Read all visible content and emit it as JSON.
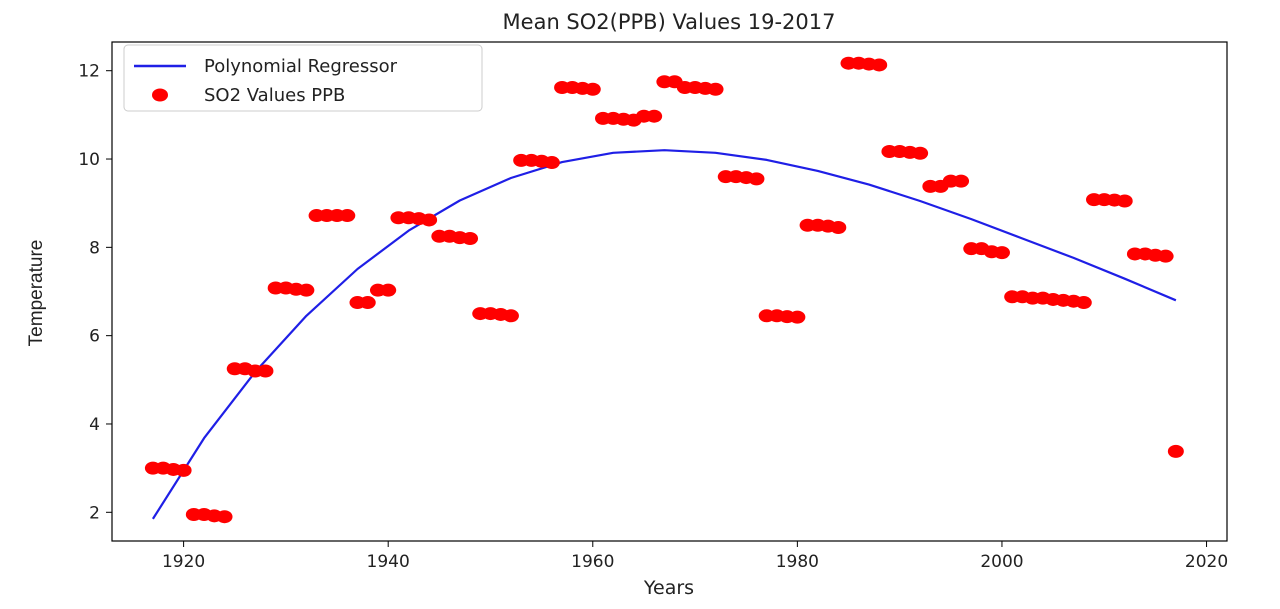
{
  "chart_data": {
    "type": "scatter",
    "title": "Mean SO2(PPB) Values 19-2017",
    "xlabel": "Years",
    "ylabel": "Temperature",
    "xlim": [
      1913,
      2022
    ],
    "ylim": [
      1.35,
      12.65
    ],
    "xticks": [
      1920,
      1940,
      1960,
      1980,
      2000,
      2020
    ],
    "yticks": [
      2,
      4,
      6,
      8,
      10,
      12
    ],
    "grid": false,
    "legend_position": "upper-left",
    "series": [
      {
        "name": "Polynomial Regressor",
        "kind": "line",
        "color": "#1f1fe6",
        "x": [
          1917,
          1922,
          1927,
          1932,
          1937,
          1942,
          1947,
          1952,
          1957,
          1962,
          1967,
          1972,
          1977,
          1982,
          1987,
          1992,
          1997,
          2002,
          2007,
          2012,
          2017
        ],
        "y": [
          1.85,
          3.68,
          5.18,
          6.45,
          7.51,
          8.38,
          9.06,
          9.57,
          9.93,
          10.14,
          10.2,
          10.14,
          9.98,
          9.73,
          9.42,
          9.05,
          8.64,
          8.2,
          7.76,
          7.29,
          6.8
        ]
      },
      {
        "name": "SO2 Values PPB",
        "kind": "scatter",
        "color": "#ff0000",
        "x": [
          1917,
          1918,
          1919,
          1920,
          1921,
          1922,
          1923,
          1924,
          1925,
          1926,
          1927,
          1928,
          1929,
          1930,
          1931,
          1932,
          1933,
          1934,
          1935,
          1936,
          1937,
          1938,
          1939,
          1940,
          1941,
          1942,
          1943,
          1944,
          1945,
          1946,
          1947,
          1948,
          1949,
          1950,
          1951,
          1952,
          1953,
          1954,
          1955,
          1956,
          1957,
          1958,
          1959,
          1960,
          1961,
          1962,
          1963,
          1964,
          1965,
          1966,
          1967,
          1968,
          1969,
          1970,
          1971,
          1972,
          1973,
          1974,
          1975,
          1976,
          1977,
          1978,
          1979,
          1980,
          1981,
          1982,
          1983,
          1984,
          1985,
          1986,
          1987,
          1988,
          1989,
          1990,
          1991,
          1992,
          1993,
          1994,
          1995,
          1996,
          1997,
          1998,
          1999,
          2000,
          2001,
          2002,
          2003,
          2004,
          2005,
          2006,
          2007,
          2008,
          2009,
          2010,
          2011,
          2012,
          2013,
          2014,
          2015,
          2016,
          2017
        ],
        "y": [
          3.0,
          3.0,
          2.97,
          2.95,
          1.95,
          1.95,
          1.92,
          1.9,
          5.25,
          5.25,
          5.2,
          5.2,
          7.08,
          7.08,
          7.05,
          7.03,
          8.72,
          8.72,
          8.72,
          8.72,
          6.75,
          6.75,
          7.03,
          7.03,
          8.67,
          8.67,
          8.65,
          8.62,
          8.25,
          8.25,
          8.22,
          8.2,
          6.5,
          6.5,
          6.48,
          6.45,
          9.97,
          9.97,
          9.95,
          9.92,
          11.62,
          11.62,
          11.6,
          11.58,
          10.92,
          10.92,
          10.9,
          10.88,
          10.97,
          10.97,
          11.75,
          11.75,
          11.62,
          11.62,
          11.6,
          11.58,
          9.6,
          9.6,
          9.58,
          9.55,
          6.45,
          6.45,
          6.43,
          6.42,
          8.5,
          8.5,
          8.48,
          8.45,
          12.17,
          12.17,
          12.15,
          12.13,
          10.17,
          10.17,
          10.15,
          10.13,
          9.38,
          9.38,
          9.5,
          9.5,
          7.97,
          7.97,
          7.9,
          7.88,
          6.88,
          6.88,
          6.85,
          6.85,
          6.82,
          6.8,
          6.78,
          6.75,
          9.08,
          9.08,
          9.07,
          9.05,
          7.85,
          7.85,
          7.82,
          7.8,
          3.38
        ]
      }
    ]
  }
}
